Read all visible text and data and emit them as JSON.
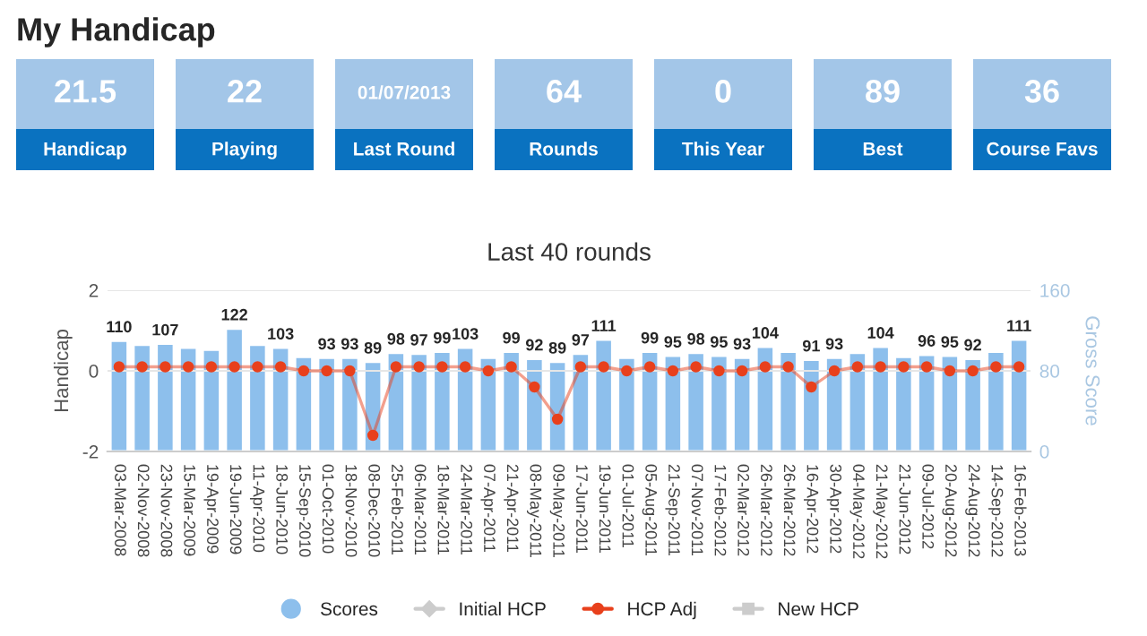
{
  "chart_data": [
    {
      "type": "other",
      "title": "My Handicap",
      "categories": [
        "Handicap",
        "Playing",
        "Last Round",
        "Rounds",
        "This Year",
        "Best",
        "Course Favs"
      ],
      "value_labels": [
        "21.5",
        "22",
        "01/07/2013",
        "64",
        "0",
        "89",
        "36"
      ],
      "color": "#a3c6e8",
      "colors": [
        "#0a72c0",
        "#0a72c0",
        "#0a72c0",
        "#0a72c0",
        "#0a72c0",
        "#0a72c0",
        "#0a72c0"
      ]
    },
    {
      "type": "bar",
      "title": "Last 40 rounds",
      "ylabel": "Handicap",
      "y2label": "Gross Score",
      "categories": [
        "03-Mar-2008",
        "02-Nov-2008",
        "23-Nov-2008",
        "15-Mar-2009",
        "19-Apr-2009",
        "19-Jun-2009",
        "11-Apr-2010",
        "18-Jun-2010",
        "15-Sep-2010",
        "01-Oct-2010",
        "18-Nov-2010",
        "08-Dec-2010",
        "25-Feb-2011",
        "06-Mar-2011",
        "18-Mar-2011",
        "24-Mar-2011",
        "07-Apr-2011",
        "21-Apr-2011",
        "08-May-2011",
        "09-May-2011",
        "17-Jun-2011",
        "19-Jun-2011",
        "01-Jul-2011",
        "05-Aug-2011",
        "21-Sep-2011",
        "07-Nov-2011",
        "17-Feb-2012",
        "02-Mar-2012",
        "26-Mar-2012",
        "26-Mar-2012",
        "16-Apr-2012",
        "30-Apr-2012",
        "04-May-2012",
        "21-May-2012",
        "21-Jun-2012",
        "09-Jul-2012",
        "20-Aug-2012",
        "24-Aug-2012",
        "14-Sep-2012",
        "16-Feb-2013"
      ],
      "series": [
        {
          "name": "Scores",
          "type": "bar",
          "axis": "y2",
          "color": "#8dbfec",
          "marker": "circle",
          "values": [
            110,
            106,
            107,
            103,
            101,
            122,
            106,
            103,
            94,
            93,
            93,
            89,
            98,
            97,
            99,
            103,
            93,
            99,
            92,
            89,
            97,
            111,
            93,
            99,
            95,
            98,
            95,
            93,
            104,
            99,
            91,
            93,
            98,
            104,
            94,
            96,
            95,
            92,
            99,
            111
          ],
          "value_labels": [
            "110",
            null,
            "107",
            null,
            null,
            "122",
            null,
            "103",
            null,
            "93",
            "93",
            "89",
            "98",
            "97",
            "99",
            "103",
            null,
            "99",
            "92",
            "89",
            "97",
            "111",
            null,
            "99",
            "95",
            "98",
            "95",
            "93",
            "104",
            null,
            "91",
            "93",
            null,
            "104",
            null,
            "96",
            "95",
            "92",
            null,
            "111"
          ]
        },
        {
          "name": "Initial HCP",
          "type": "line",
          "color": "#cccccc",
          "marker": "diamond",
          "values": [
            null,
            null,
            null,
            null,
            null,
            null,
            null,
            null,
            null,
            null,
            null,
            null,
            null,
            null,
            null,
            null,
            null,
            null,
            null,
            null,
            null,
            null,
            null,
            null,
            null,
            null,
            null,
            null,
            null,
            null,
            null,
            null,
            null,
            null,
            null,
            null,
            null,
            null,
            null,
            null
          ]
        },
        {
          "name": "HCP Adj",
          "type": "line",
          "color": "#e8401c",
          "marker": "circle",
          "values": [
            0.1,
            0.1,
            0.1,
            0.1,
            0.1,
            0.1,
            0.1,
            0.1,
            0.0,
            0.0,
            0.0,
            -1.6,
            0.1,
            0.1,
            0.1,
            0.1,
            0.0,
            0.1,
            -0.4,
            -1.2,
            0.1,
            0.1,
            0.0,
            0.1,
            0.0,
            0.1,
            0.0,
            0.0,
            0.1,
            0.1,
            -0.4,
            0.0,
            0.1,
            0.1,
            0.1,
            0.1,
            0.0,
            0.0,
            0.1,
            0.1
          ]
        },
        {
          "name": "New HCP",
          "type": "line",
          "color": "#cccccc",
          "marker": "square",
          "values": [
            null,
            null,
            null,
            null,
            null,
            null,
            null,
            null,
            null,
            null,
            null,
            null,
            null,
            null,
            null,
            null,
            null,
            null,
            null,
            null,
            null,
            null,
            null,
            null,
            null,
            null,
            null,
            null,
            null,
            null,
            null,
            null,
            null,
            null,
            null,
            null,
            null,
            null,
            null,
            null
          ]
        }
      ],
      "ylim": [
        -2,
        2
      ],
      "yticks": [
        -2,
        0,
        2
      ],
      "y2lim": [
        0,
        160
      ],
      "y2ticks": [
        0,
        80,
        160
      ],
      "grid": "y",
      "legend": "bottom"
    }
  ]
}
